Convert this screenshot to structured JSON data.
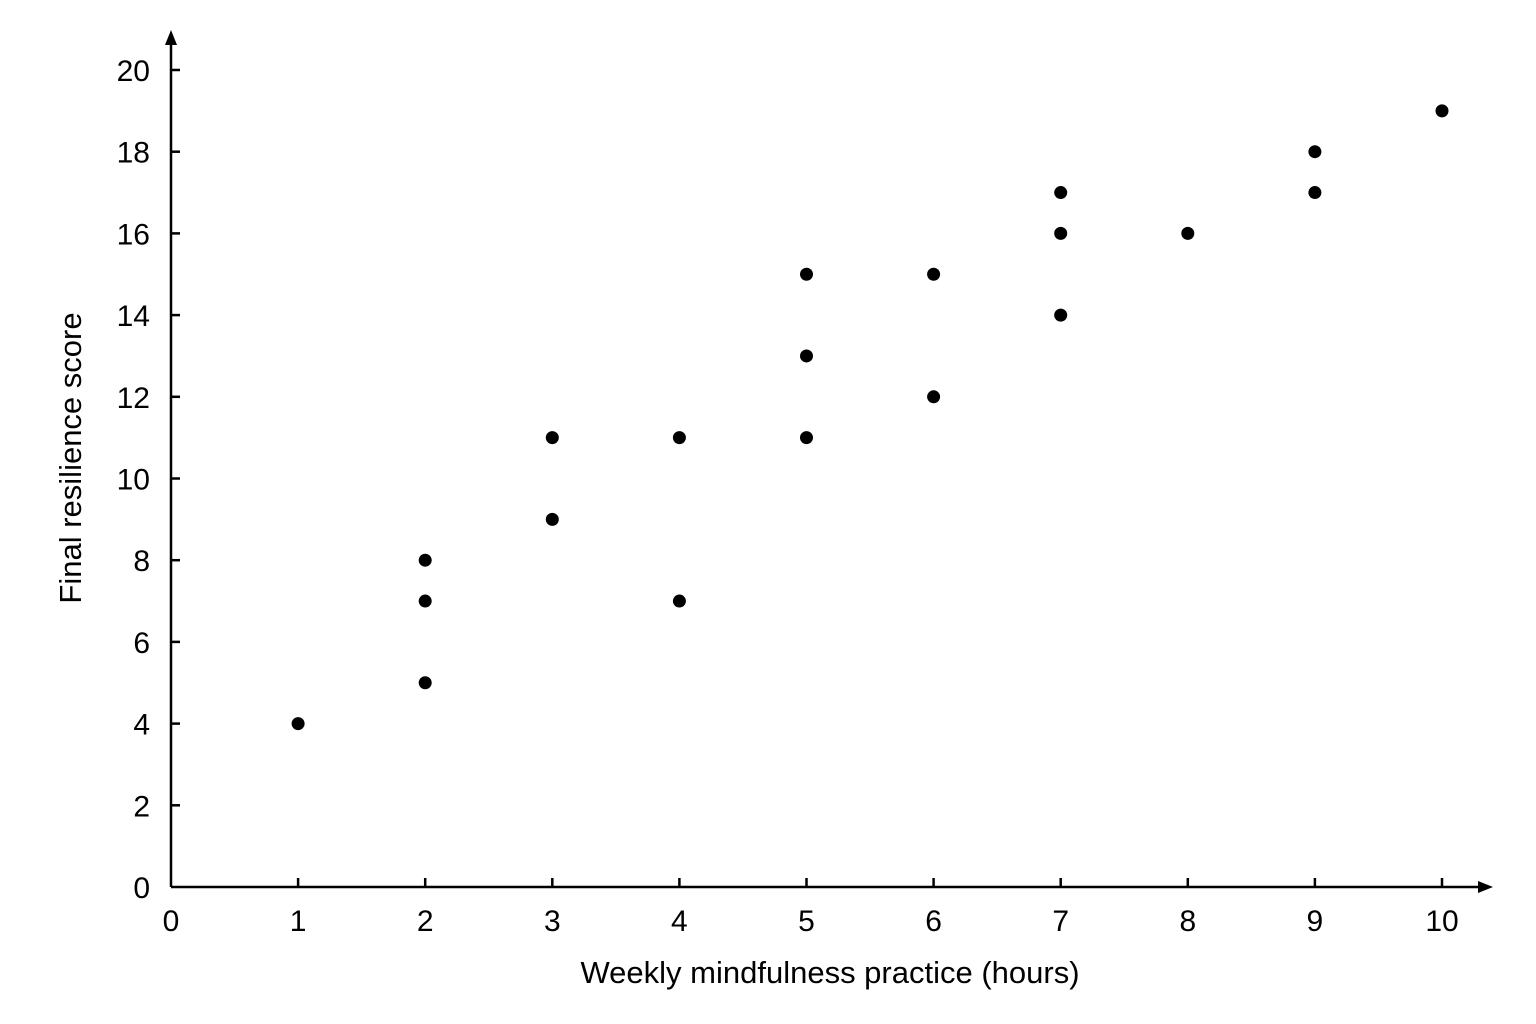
{
  "chart_data": {
    "type": "scatter",
    "xlabel": "Weekly mindfulness practice (hours)",
    "ylabel": "Final resilience score",
    "xlim": [
      0,
      10
    ],
    "ylim": [
      0,
      20
    ],
    "xticks": [
      0,
      1,
      2,
      3,
      4,
      5,
      6,
      7,
      8,
      9,
      10
    ],
    "yticks": [
      0,
      2,
      4,
      6,
      8,
      10,
      12,
      14,
      16,
      18,
      20
    ],
    "grid": false,
    "legend": "none",
    "marker_color": "#000000",
    "points": [
      {
        "x": 1,
        "y": 4
      },
      {
        "x": 2,
        "y": 5
      },
      {
        "x": 2,
        "y": 7
      },
      {
        "x": 2,
        "y": 8
      },
      {
        "x": 3,
        "y": 9
      },
      {
        "x": 3,
        "y": 11
      },
      {
        "x": 4,
        "y": 7
      },
      {
        "x": 4,
        "y": 11
      },
      {
        "x": 5,
        "y": 11
      },
      {
        "x": 5,
        "y": 13
      },
      {
        "x": 5,
        "y": 15
      },
      {
        "x": 6,
        "y": 12
      },
      {
        "x": 6,
        "y": 15
      },
      {
        "x": 7,
        "y": 14
      },
      {
        "x": 7,
        "y": 16
      },
      {
        "x": 7,
        "y": 17
      },
      {
        "x": 8,
        "y": 16
      },
      {
        "x": 9,
        "y": 17
      },
      {
        "x": 9,
        "y": 18
      },
      {
        "x": 10,
        "y": 19
      }
    ]
  }
}
